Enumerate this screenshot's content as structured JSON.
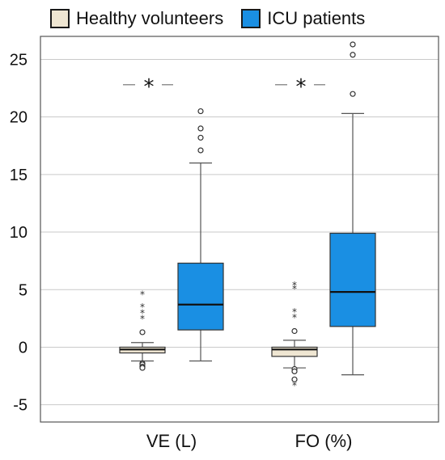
{
  "chart_data": {
    "type": "boxplot",
    "categories": [
      "VE (L)",
      "FO (%)"
    ],
    "ylim": [
      -6.5,
      27
    ],
    "yticks": [
      -5,
      0,
      5,
      10,
      15,
      20,
      25
    ],
    "ytick_labels": [
      "-5",
      "0",
      "5",
      "10",
      "15",
      "20",
      "25"
    ],
    "grid": true,
    "legend_position": "top",
    "series": [
      {
        "name": "Healthy volunteers",
        "color": "#efe6d2",
        "boxes": [
          {
            "category": "VE (L)",
            "min": -1.2,
            "q1": -0.5,
            "median": -0.2,
            "q3": 0.0,
            "max": 0.4,
            "outliers": [
              1.3,
              -1.4,
              -1.5,
              -1.7,
              -1.8
            ],
            "extremes": [
              2.6,
              3.1,
              3.6,
              4.7
            ]
          },
          {
            "category": "FO (%)",
            "min": -1.8,
            "q1": -0.8,
            "median": -0.2,
            "q3": 0.0,
            "max": 0.6,
            "outliers": [
              1.4,
              -1.9,
              -2.1,
              -2.8
            ],
            "extremes": [
              2.7,
              3.2,
              5.2,
              5.5,
              -3.2
            ]
          }
        ]
      },
      {
        "name": "ICU patients",
        "color": "#1a8fe3",
        "boxes": [
          {
            "category": "VE (L)",
            "min": -1.2,
            "q1": 1.5,
            "median": 3.7,
            "q3": 7.3,
            "max": 16.0,
            "outliers": [
              17.1,
              18.2,
              19.0,
              20.5
            ],
            "extremes": []
          },
          {
            "category": "FO (%)",
            "min": -2.4,
            "q1": 1.8,
            "median": 4.8,
            "q3": 9.9,
            "max": 20.3,
            "outliers": [
              22.0,
              25.4,
              26.3
            ],
            "extremes": []
          }
        ]
      }
    ],
    "significance": [
      {
        "category": "VE (L)",
        "y": 22.8,
        "label": "*"
      },
      {
        "category": "FO (%)",
        "y": 22.8,
        "label": "*"
      }
    ]
  }
}
